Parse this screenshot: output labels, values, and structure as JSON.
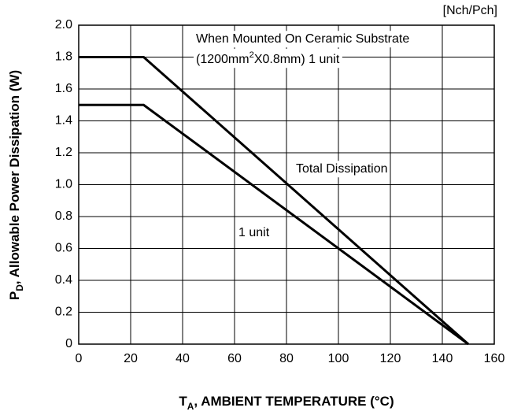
{
  "chart_data": {
    "type": "line",
    "note": "[Nch/Pch]",
    "annotation": {
      "line1": "When Mounted On Ceramic Substrate",
      "line2": [
        "(1200mm",
        "2",
        "X0.8mm) 1 unit"
      ]
    },
    "xlabel": [
      "T",
      "A",
      ", AMBIENT TEMPERATURE (°C)"
    ],
    "ylabel": [
      "P",
      "D",
      ", Allowable Power Dissipation (W)"
    ],
    "series": [
      {
        "name": "Total Dissipation",
        "color": "#000000",
        "x": [
          0,
          25,
          150
        ],
        "values": [
          1.8,
          1.8,
          0
        ]
      },
      {
        "name": "1 unit",
        "color": "#000000",
        "x": [
          0,
          25,
          150
        ],
        "values": [
          1.5,
          1.5,
          0
        ]
      }
    ],
    "xlim": [
      0,
      160
    ],
    "xticks": [
      0,
      20,
      40,
      60,
      80,
      100,
      120,
      140,
      160
    ],
    "ylim": [
      0,
      2
    ],
    "yticks": [
      0,
      0.2,
      0.4,
      0.6,
      0.8,
      {
        "value": 1,
        "label": "1.0"
      },
      1.2,
      1.4,
      1.6,
      1.8,
      {
        "value": 2,
        "label": "2.0"
      }
    ],
    "grid": true
  }
}
